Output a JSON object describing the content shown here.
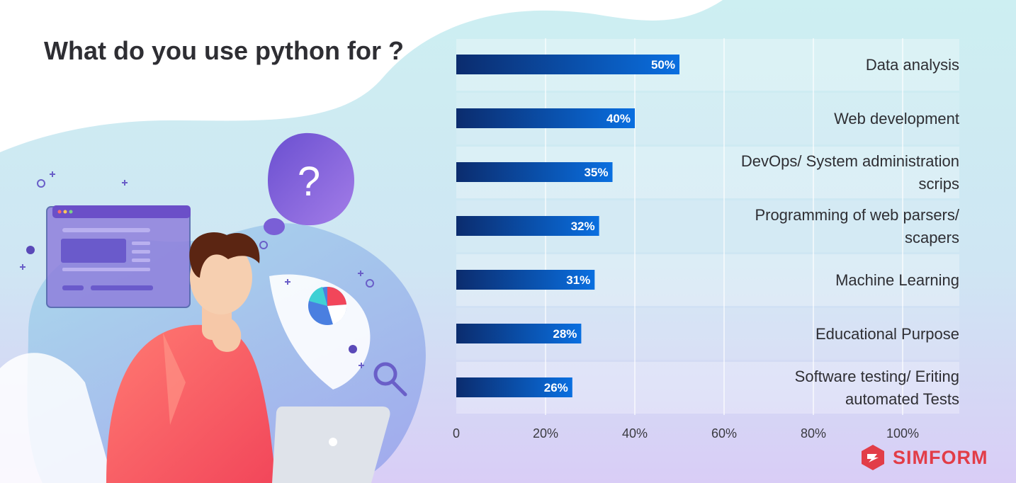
{
  "title": "What do you use python for ?",
  "brand": {
    "name": "SIMFORM",
    "logo_icon": "simform-logo-icon",
    "color": "#e23d48"
  },
  "illustration": {
    "icons": [
      "question-bubble-icon",
      "browser-window-icon",
      "pie-chart-icon",
      "magnifier-icon",
      "laptop-icon",
      "thinking-person-figure"
    ]
  },
  "chart_data": {
    "type": "bar",
    "orientation": "horizontal",
    "title": "What do you use python for ?",
    "categories": [
      [
        "Data analysis"
      ],
      [
        "Web development"
      ],
      [
        "DevOps/ System administration",
        "scrips"
      ],
      [
        "Programming of web parsers/",
        "scapers"
      ],
      [
        "Machine Learning"
      ],
      [
        "Educational Purpose"
      ],
      [
        "Software testing/ Eriting",
        "automated Tests"
      ]
    ],
    "values": [
      50,
      40,
      35,
      32,
      31,
      28,
      26
    ],
    "value_labels": [
      "50%",
      "40%",
      "35%",
      "32%",
      "31%",
      "28%",
      "26%"
    ],
    "xlim": [
      0,
      100
    ],
    "xticks": [
      0,
      20,
      40,
      60,
      80,
      100
    ],
    "xtick_labels": [
      "0",
      "20%",
      "40%",
      "60%",
      "80%",
      "100%"
    ],
    "grid": true,
    "colors": {
      "bar_start": "#0b2c6e",
      "bar_end": "#0a6fe0",
      "label": "#2e2e33"
    }
  }
}
